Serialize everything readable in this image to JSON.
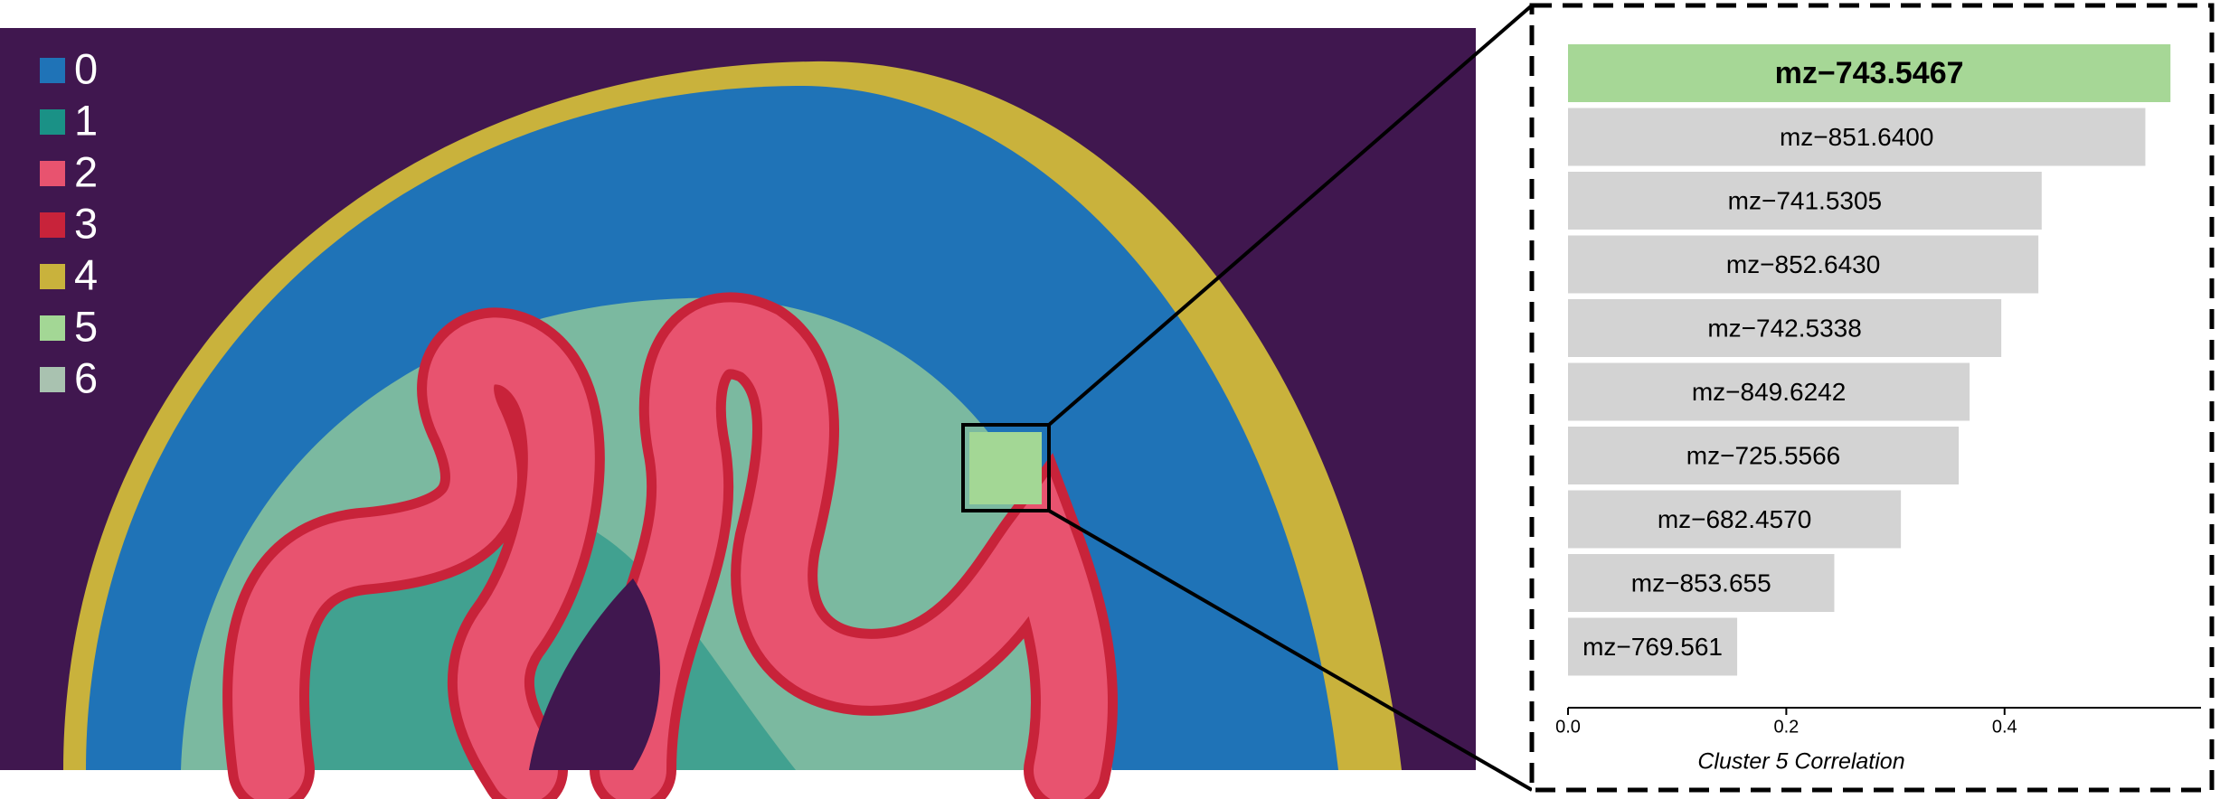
{
  "cluster_map": {
    "legend": [
      {
        "label": "0",
        "color": "#1f73b7"
      },
      {
        "label": "1",
        "color": "#1a9186"
      },
      {
        "label": "2",
        "color": "#e8536f"
      },
      {
        "label": "3",
        "color": "#c8233a"
      },
      {
        "label": "4",
        "color": "#c9b23c"
      },
      {
        "label": "5",
        "color": "#a3d795"
      },
      {
        "label": "6",
        "color": "#a9c2b0"
      }
    ]
  },
  "chart_data": {
    "type": "bar",
    "orientation": "horizontal",
    "xlabel": "Cluster 5 Correlation",
    "categories": [
      "mz−743.5467",
      "mz−851.6400",
      "mz−741.5305",
      "mz−852.6430",
      "mz−742.5338",
      "mz−849.6242",
      "mz−725.5566",
      "mz−682.4570",
      "mz−853.655",
      "mz−769.561"
    ],
    "values": [
      0.552,
      0.529,
      0.434,
      0.431,
      0.397,
      0.368,
      0.358,
      0.305,
      0.244,
      0.155
    ],
    "colors": [
      "#a6d796",
      "#d3d3d3",
      "#d3d3d3",
      "#d3d3d3",
      "#d3d3d3",
      "#d3d3d3",
      "#d3d3d3",
      "#d3d3d3",
      "#d3d3d3",
      "#d3d3d3"
    ],
    "xlim": [
      0,
      0.58
    ],
    "xticks": [
      {
        "value": 0,
        "label": "0.0"
      },
      {
        "value": 0.2,
        "label": "0.2"
      },
      {
        "value": 0.4,
        "label": "0.4"
      }
    ]
  }
}
